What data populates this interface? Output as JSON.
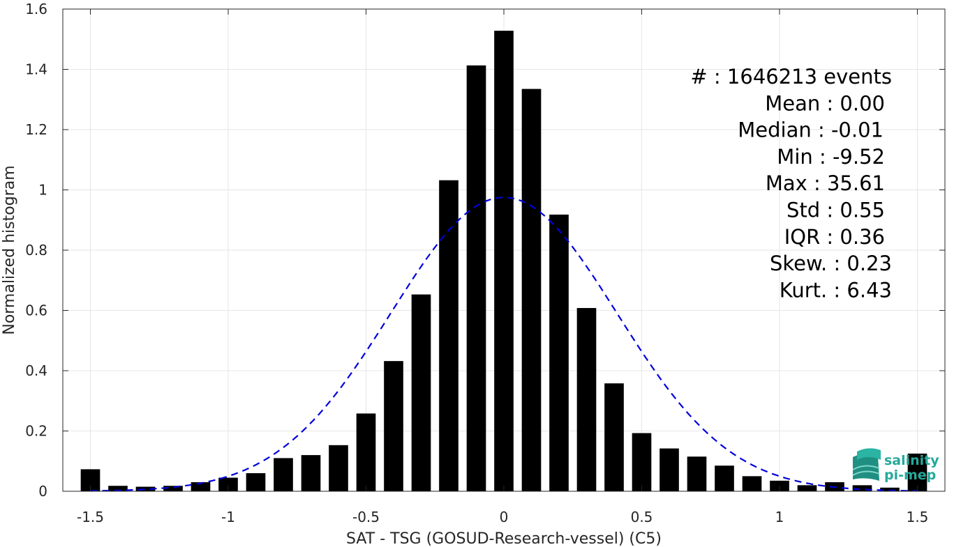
{
  "chart_data": {
    "type": "bar",
    "xlabel": "SAT - TSG (GOSUD-Research-vessel) (C5)",
    "ylabel": "Normalized histogram",
    "xlim": [
      -1.6,
      1.6
    ],
    "ylim": [
      0,
      1.6
    ],
    "xticks": [
      -1.5,
      -1,
      -0.5,
      0,
      0.5,
      1,
      1.5
    ],
    "xtick_labels": [
      "-1.5",
      "-1",
      "-0.5",
      "0",
      "0.5",
      "1",
      "1.5"
    ],
    "yticks": [
      0,
      0.2,
      0.4,
      0.6,
      0.8,
      1,
      1.2,
      1.4,
      1.6
    ],
    "ytick_labels": [
      "0",
      "0.2",
      "0.4",
      "0.6",
      "0.8",
      "1",
      "1.2",
      "1.4",
      "1.6"
    ],
    "grid": true,
    "bin_centers": [
      -1.5,
      -1.4,
      -1.3,
      -1.2,
      -1.1,
      -1.0,
      -0.9,
      -0.8,
      -0.7,
      -0.6,
      -0.5,
      -0.4,
      -0.3,
      -0.2,
      -0.1,
      0.0,
      0.1,
      0.2,
      0.3,
      0.4,
      0.5,
      0.6,
      0.7,
      0.8,
      0.9,
      1.0,
      1.1,
      1.2,
      1.3,
      1.4,
      1.5
    ],
    "values": [
      0.073,
      0.018,
      0.015,
      0.018,
      0.03,
      0.045,
      0.06,
      0.11,
      0.12,
      0.153,
      0.258,
      0.432,
      0.653,
      1.032,
      1.413,
      1.528,
      1.335,
      0.918,
      0.608,
      0.358,
      0.193,
      0.142,
      0.115,
      0.085,
      0.05,
      0.035,
      0.02,
      0.03,
      0.02,
      0.012,
      0.125
    ],
    "bar_color": "#000000",
    "fit_curve": {
      "style": "dashed",
      "color": "#0000dd",
      "mean": 0.0,
      "peak": 0.975,
      "sigma": 0.41
    },
    "annotations": [
      "#  : 1646213 events",
      "Mean : 0.00",
      "Median : -0.01",
      "Min : -9.52",
      "Max : 35.61",
      "Std : 0.55",
      "IQR : 0.36",
      "Skew. : 0.23",
      "Kurt. : 6.43"
    ]
  },
  "logo": {
    "line1": "salinity",
    "line2": "pi-mep",
    "color": "#25a99a"
  }
}
